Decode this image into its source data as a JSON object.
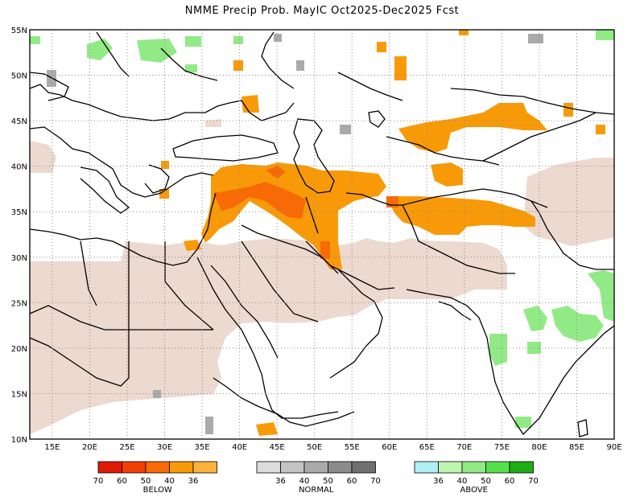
{
  "title": "NMME Precip Prob. MayIC  Oct2025-Dec2025 Fcst",
  "map": {
    "lon_range": [
      12,
      90
    ],
    "lat_range": [
      10,
      55
    ],
    "x_ticks": [
      {
        "value": 15,
        "label": "15E"
      },
      {
        "value": 20,
        "label": "20E"
      },
      {
        "value": 25,
        "label": "25E"
      },
      {
        "value": 30,
        "label": "30E"
      },
      {
        "value": 35,
        "label": "35E"
      },
      {
        "value": 40,
        "label": "40E"
      },
      {
        "value": 45,
        "label": "45E"
      },
      {
        "value": 50,
        "label": "50E"
      },
      {
        "value": 55,
        "label": "55E"
      },
      {
        "value": 60,
        "label": "60E"
      },
      {
        "value": 65,
        "label": "65E"
      },
      {
        "value": 70,
        "label": "70E"
      },
      {
        "value": 75,
        "label": "75E"
      },
      {
        "value": 80,
        "label": "80E"
      },
      {
        "value": 85,
        "label": "85E"
      },
      {
        "value": 90,
        "label": "90E"
      }
    ],
    "y_ticks": [
      {
        "value": 55,
        "label": "55N"
      },
      {
        "value": 50,
        "label": "50N"
      },
      {
        "value": 45,
        "label": "45N"
      },
      {
        "value": 40,
        "label": "40N"
      },
      {
        "value": 35,
        "label": "35N"
      },
      {
        "value": 30,
        "label": "30N"
      },
      {
        "value": 25,
        "label": "25N"
      },
      {
        "value": 20,
        "label": "20N"
      },
      {
        "value": 15,
        "label": "15N"
      },
      {
        "value": 10,
        "label": "10N"
      }
    ],
    "grid": "dotted"
  },
  "colors": {
    "dry_season_mask": "#ecd9cf",
    "below_36": "#fbb33c",
    "below_40": "#f89a08",
    "below_50": "#f76a05",
    "below_60": "#f23f04",
    "below_70": "#df1a02",
    "normal_36": "#dcdcdc",
    "normal_40": "#c4c4c4",
    "normal_50": "#aaaaaa",
    "normal_60": "#8c8c8c",
    "normal_70": "#707070",
    "above_36": "#b0f0f5",
    "above_40": "#c0f5b0",
    "above_50": "#92ea86",
    "above_60": "#55e14a",
    "above_70": "#1ead12"
  },
  "legend": {
    "below": {
      "title": "BELOW",
      "colors": [
        "#df1a02",
        "#f23f04",
        "#f76a05",
        "#f89a08",
        "#fbb33c"
      ],
      "labels": [
        "70",
        "60",
        "50",
        "40",
        "36"
      ]
    },
    "normal": {
      "title": "NORMAL",
      "colors": [
        "#dcdcdc",
        "#c4c4c4",
        "#aaaaaa",
        "#8c8c8c",
        "#707070"
      ],
      "labels": [
        "36",
        "40",
        "50",
        "60",
        "70"
      ]
    },
    "above": {
      "title": "ABOVE",
      "colors": [
        "#b0f0f5",
        "#c0f5b0",
        "#92ea86",
        "#55e14a",
        "#1ead12"
      ],
      "labels": [
        "36",
        "40",
        "50",
        "60",
        "70"
      ]
    }
  }
}
